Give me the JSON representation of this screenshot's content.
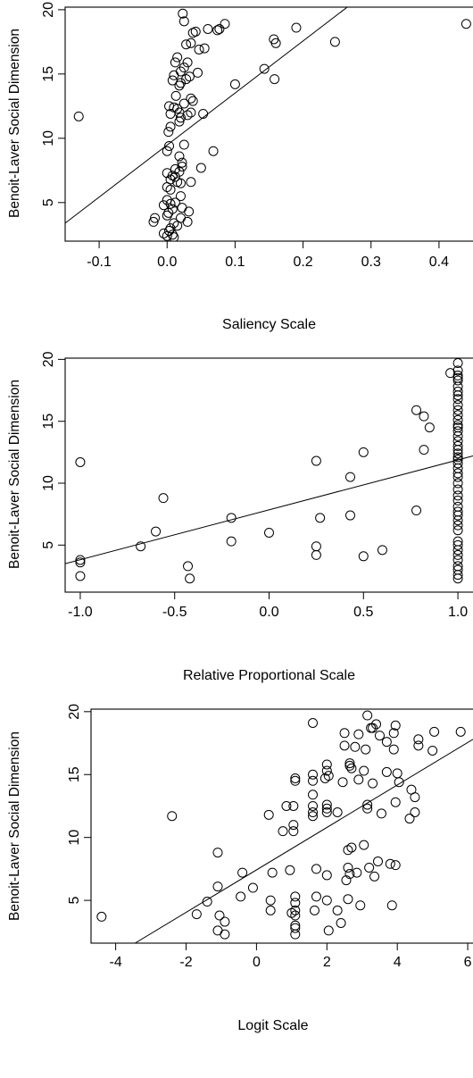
{
  "chart_data": [
    {
      "type": "scatter",
      "xlabel": "Saliency Scale",
      "ylabel": "Benoit-Laver Social Dimension",
      "x_ticks": [
        "-0.1",
        "0.0",
        "0.1",
        "0.2",
        "0.3",
        "0.4"
      ],
      "y_ticks": [
        "5",
        "10",
        "15",
        "20"
      ],
      "xlim": [
        -0.15,
        0.45
      ],
      "ylim": [
        2,
        20.2
      ],
      "grid": false,
      "fit_line": [
        [
          -0.15,
          3.4
        ],
        [
          0.265,
          20.2
        ]
      ],
      "points": [
        [
          -0.13,
          11.7
        ],
        [
          0.44,
          18.9
        ],
        [
          0.247,
          17.5
        ],
        [
          0.19,
          18.6
        ],
        [
          0.16,
          17.4
        ],
        [
          0.157,
          17.7
        ],
        [
          0.143,
          15.4
        ],
        [
          0.158,
          14.6
        ],
        [
          0.1,
          14.2
        ],
        [
          0.068,
          9.0
        ],
        [
          0.053,
          11.9
        ],
        [
          0.05,
          7.7
        ],
        [
          0.085,
          18.9
        ],
        [
          0.077,
          18.5
        ],
        [
          0.074,
          18.4
        ],
        [
          0.055,
          17.0
        ],
        [
          0.06,
          18.5
        ],
        [
          0.042,
          18.3
        ],
        [
          0.038,
          18.2
        ],
        [
          0.023,
          19.7
        ],
        [
          0.025,
          19.1
        ],
        [
          0.047,
          16.9
        ],
        [
          0.035,
          17.4
        ],
        [
          0.028,
          17.3
        ],
        [
          0.015,
          16.3
        ],
        [
          0.012,
          15.9
        ],
        [
          0.03,
          15.9
        ],
        [
          0.025,
          15.5
        ],
        [
          0.045,
          15.1
        ],
        [
          0.02,
          15.2
        ],
        [
          0.01,
          14.9
        ],
        [
          0.008,
          14.5
        ],
        [
          0.028,
          14.6
        ],
        [
          0.02,
          14.3
        ],
        [
          0.033,
          14.8
        ],
        [
          0.018,
          14.1
        ],
        [
          0.035,
          13.1
        ],
        [
          0.013,
          13.3
        ],
        [
          0.038,
          12.9
        ],
        [
          0.025,
          12.7
        ],
        [
          0.003,
          12.5
        ],
        [
          0.015,
          12.3
        ],
        [
          0.018,
          12.0
        ],
        [
          0.01,
          12.4
        ],
        [
          0.005,
          11.9
        ],
        [
          0.02,
          11.6
        ],
        [
          0.03,
          11.8
        ],
        [
          0.035,
          12.0
        ],
        [
          0.018,
          11.3
        ],
        [
          0.005,
          10.9
        ],
        [
          0.002,
          10.5
        ],
        [
          0.003,
          9.4
        ],
        [
          0.025,
          9.5
        ],
        [
          0.0,
          9.0
        ],
        [
          0.018,
          8.6
        ],
        [
          0.022,
          8.1
        ],
        [
          0.022,
          7.8
        ],
        [
          0.018,
          7.4
        ],
        [
          0.012,
          7.6
        ],
        [
          0.008,
          7.1
        ],
        [
          0.012,
          7.0
        ],
        [
          0.0,
          7.3
        ],
        [
          0.005,
          6.8
        ],
        [
          0.015,
          6.6
        ],
        [
          0.035,
          6.6
        ],
        [
          0.02,
          6.5
        ],
        [
          0.005,
          6.0
        ],
        [
          0.0,
          6.2
        ],
        [
          0.02,
          5.5
        ],
        [
          0.0,
          5.2
        ],
        [
          0.012,
          5.0
        ],
        [
          0.005,
          4.9
        ],
        [
          0.022,
          4.6
        ],
        [
          -0.005,
          4.8
        ],
        [
          0.008,
          4.5
        ],
        [
          0.002,
          4.2
        ],
        [
          0.0,
          4.0
        ],
        [
          0.032,
          4.3
        ],
        [
          -0.018,
          3.8
        ],
        [
          -0.02,
          3.5
        ],
        [
          0.01,
          3.4
        ],
        [
          0.005,
          3.0
        ],
        [
          0.015,
          3.2
        ],
        [
          -0.005,
          2.6
        ],
        [
          0.0,
          2.4
        ],
        [
          0.008,
          2.5
        ],
        [
          0.01,
          2.3
        ],
        [
          0.003,
          2.8
        ],
        [
          0.02,
          3.8
        ],
        [
          0.03,
          3.5
        ]
      ]
    },
    {
      "type": "scatter",
      "xlabel": "Relative Proportional Scale",
      "ylabel": "Benoit-Laver Social Dimension",
      "x_ticks": [
        "-1.0",
        "-0.5",
        "0.0",
        "0.5",
        "1.0"
      ],
      "y_ticks": [
        "5",
        "10",
        "15",
        "20"
      ],
      "xlim": [
        -1.08,
        1.08
      ],
      "ylim": [
        1.2,
        20.1
      ],
      "grid": false,
      "fit_line": [
        [
          -1.08,
          3.5
        ],
        [
          1.08,
          12.2
        ]
      ],
      "points": [
        [
          -1.0,
          11.7
        ],
        [
          -1.0,
          3.8
        ],
        [
          -1.0,
          3.6
        ],
        [
          -1.0,
          2.5
        ],
        [
          -0.68,
          4.9
        ],
        [
          -0.6,
          6.1
        ],
        [
          -0.56,
          8.8
        ],
        [
          -0.43,
          3.3
        ],
        [
          -0.42,
          2.3
        ],
        [
          -0.2,
          7.2
        ],
        [
          -0.2,
          5.3
        ],
        [
          0.0,
          6.0
        ],
        [
          0.25,
          11.8
        ],
        [
          0.25,
          4.9
        ],
        [
          0.25,
          4.2
        ],
        [
          0.27,
          7.2
        ],
        [
          0.43,
          10.5
        ],
        [
          0.43,
          7.4
        ],
        [
          0.5,
          12.5
        ],
        [
          0.5,
          4.1
        ],
        [
          0.6,
          4.6
        ],
        [
          0.78,
          7.8
        ],
        [
          0.78,
          15.9
        ],
        [
          0.82,
          15.4
        ],
        [
          0.82,
          12.7
        ],
        [
          0.85,
          14.5
        ],
        [
          0.96,
          18.9
        ],
        [
          1.0,
          19.7
        ],
        [
          1.0,
          19.1
        ],
        [
          1.0,
          18.7
        ],
        [
          1.0,
          18.5
        ],
        [
          1.0,
          18.3
        ],
        [
          1.0,
          17.8
        ],
        [
          1.0,
          17.4
        ],
        [
          1.0,
          17.1
        ],
        [
          1.0,
          16.8
        ],
        [
          1.0,
          16.3
        ],
        [
          1.0,
          15.9
        ],
        [
          1.0,
          15.5
        ],
        [
          1.0,
          15.1
        ],
        [
          1.0,
          14.7
        ],
        [
          1.0,
          14.5
        ],
        [
          1.0,
          14.2
        ],
        [
          1.0,
          13.8
        ],
        [
          1.0,
          13.4
        ],
        [
          1.0,
          13.0
        ],
        [
          1.0,
          12.7
        ],
        [
          1.0,
          12.4
        ],
        [
          1.0,
          12.1
        ],
        [
          1.0,
          11.9
        ],
        [
          1.0,
          11.6
        ],
        [
          1.0,
          11.2
        ],
        [
          1.0,
          10.8
        ],
        [
          1.0,
          10.5
        ],
        [
          1.0,
          10.0
        ],
        [
          1.0,
          9.5
        ],
        [
          1.0,
          9.0
        ],
        [
          1.0,
          8.6
        ],
        [
          1.0,
          8.1
        ],
        [
          1.0,
          7.7
        ],
        [
          1.0,
          7.4
        ],
        [
          1.0,
          7.0
        ],
        [
          1.0,
          6.6
        ],
        [
          1.0,
          6.2
        ],
        [
          1.0,
          5.3
        ],
        [
          1.0,
          5.0
        ],
        [
          1.0,
          4.6
        ],
        [
          1.0,
          4.2
        ],
        [
          1.0,
          3.8
        ],
        [
          1.0,
          3.3
        ],
        [
          1.0,
          3.0
        ],
        [
          1.0,
          2.6
        ],
        [
          1.0,
          2.3
        ]
      ]
    },
    {
      "type": "scatter",
      "xlabel": "Logit Scale",
      "ylabel": "Benoit-Laver Social Dimension",
      "x_ticks": [
        "-4",
        "-2",
        "0",
        "2",
        "4",
        "6"
      ],
      "y_ticks": [
        "5",
        "10",
        "15",
        "20"
      ],
      "xlim": [
        -4.7,
        6.15
      ],
      "ylim": [
        1.6,
        20.2
      ],
      "grid": false,
      "fit_line": [
        [
          -3.45,
          1.6
        ],
        [
          6.15,
          17.8
        ]
      ],
      "points": [
        [
          -4.4,
          3.7
        ],
        [
          -2.4,
          11.7
        ],
        [
          -1.1,
          8.8
        ],
        [
          -1.1,
          6.1
        ],
        [
          -1.4,
          4.9
        ],
        [
          -1.7,
          3.9
        ],
        [
          -1.05,
          3.8
        ],
        [
          -0.9,
          3.3
        ],
        [
          -1.1,
          2.6
        ],
        [
          -0.9,
          2.3
        ],
        [
          -0.4,
          7.2
        ],
        [
          -0.45,
          5.3
        ],
        [
          -0.1,
          6.0
        ],
        [
          0.35,
          11.8
        ],
        [
          0.45,
          7.2
        ],
        [
          0.4,
          5.0
        ],
        [
          0.4,
          4.2
        ],
        [
          0.75,
          10.5
        ],
        [
          0.85,
          12.5
        ],
        [
          0.95,
          7.4
        ],
        [
          1.05,
          12.5
        ],
        [
          1.1,
          14.5
        ],
        [
          1.1,
          14.7
        ],
        [
          1.05,
          11.0
        ],
        [
          1.05,
          10.5
        ],
        [
          1.1,
          5.3
        ],
        [
          1.1,
          4.8
        ],
        [
          1.1,
          4.2
        ],
        [
          1.1,
          3.8
        ],
        [
          1.1,
          3.0
        ],
        [
          1.1,
          2.8
        ],
        [
          1.1,
          2.3
        ],
        [
          1.0,
          4.0
        ],
        [
          1.6,
          19.1
        ],
        [
          1.6,
          15.0
        ],
        [
          1.6,
          14.5
        ],
        [
          1.6,
          13.4
        ],
        [
          1.6,
          12.5
        ],
        [
          1.6,
          12.0
        ],
        [
          1.6,
          11.7
        ],
        [
          1.7,
          7.5
        ],
        [
          1.7,
          5.3
        ],
        [
          1.65,
          4.2
        ],
        [
          2.0,
          15.8
        ],
        [
          2.0,
          15.3
        ],
        [
          1.95,
          14.7
        ],
        [
          2.0,
          12.6
        ],
        [
          2.0,
          12.3
        ],
        [
          2.0,
          12.0
        ],
        [
          2.0,
          7.0
        ],
        [
          2.0,
          5.0
        ],
        [
          2.05,
          2.6
        ],
        [
          2.3,
          12.0
        ],
        [
          2.3,
          4.2
        ],
        [
          2.4,
          3.2
        ],
        [
          2.45,
          14.4
        ],
        [
          2.5,
          18.3
        ],
        [
          2.5,
          17.3
        ],
        [
          2.55,
          6.6
        ],
        [
          2.6,
          9.0
        ],
        [
          2.7,
          9.2
        ],
        [
          2.65,
          7.1
        ],
        [
          2.6,
          7.6
        ],
        [
          2.6,
          5.1
        ],
        [
          2.65,
          15.7
        ],
        [
          2.65,
          15.9
        ],
        [
          2.7,
          15.5
        ],
        [
          2.8,
          17.2
        ],
        [
          2.85,
          7.2
        ],
        [
          2.9,
          14.6
        ],
        [
          2.95,
          4.6
        ],
        [
          3.05,
          15.3
        ],
        [
          3.05,
          9.4
        ],
        [
          3.1,
          17.0
        ],
        [
          3.15,
          12.3
        ],
        [
          3.15,
          12.6
        ],
        [
          3.15,
          19.7
        ],
        [
          3.2,
          7.6
        ],
        [
          3.25,
          18.7
        ],
        [
          3.3,
          14.3
        ],
        [
          3.35,
          6.9
        ],
        [
          3.4,
          19.0
        ],
        [
          3.45,
          8.1
        ],
        [
          3.5,
          18.1
        ],
        [
          3.55,
          11.9
        ],
        [
          3.7,
          15.2
        ],
        [
          3.7,
          17.6
        ],
        [
          3.8,
          7.9
        ],
        [
          3.85,
          4.6
        ],
        [
          3.9,
          18.3
        ],
        [
          3.9,
          17.0
        ],
        [
          3.95,
          12.8
        ],
        [
          3.95,
          7.8
        ],
        [
          3.95,
          18.9
        ],
        [
          4.0,
          15.1
        ],
        [
          4.05,
          14.4
        ],
        [
          4.35,
          11.5
        ],
        [
          4.4,
          13.8
        ],
        [
          4.5,
          12.0
        ],
        [
          4.5,
          13.2
        ],
        [
          4.6,
          17.3
        ],
        [
          4.6,
          17.8
        ],
        [
          5.0,
          16.9
        ],
        [
          5.05,
          18.4
        ],
        [
          5.8,
          18.4
        ],
        [
          3.3,
          18.7
        ],
        [
          2.05,
          14.9
        ],
        [
          2.9,
          18.2
        ]
      ]
    }
  ]
}
